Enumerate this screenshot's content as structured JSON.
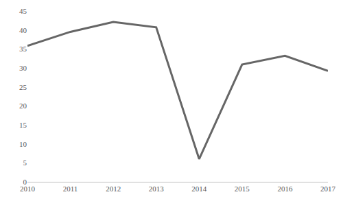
{
  "chart_data": {
    "type": "line",
    "categories": [
      "2010",
      "2011",
      "2012",
      "2013",
      "2014",
      "2015",
      "2016",
      "2017"
    ],
    "values": [
      35.8,
      39.5,
      42.1,
      40.7,
      6,
      30.9,
      33.2,
      29.2
    ],
    "color": "#666666",
    "ylim": [
      0,
      45
    ],
    "yticks": [
      0,
      5,
      10,
      15,
      20,
      25,
      30,
      35,
      40,
      45
    ],
    "grid": false
  }
}
